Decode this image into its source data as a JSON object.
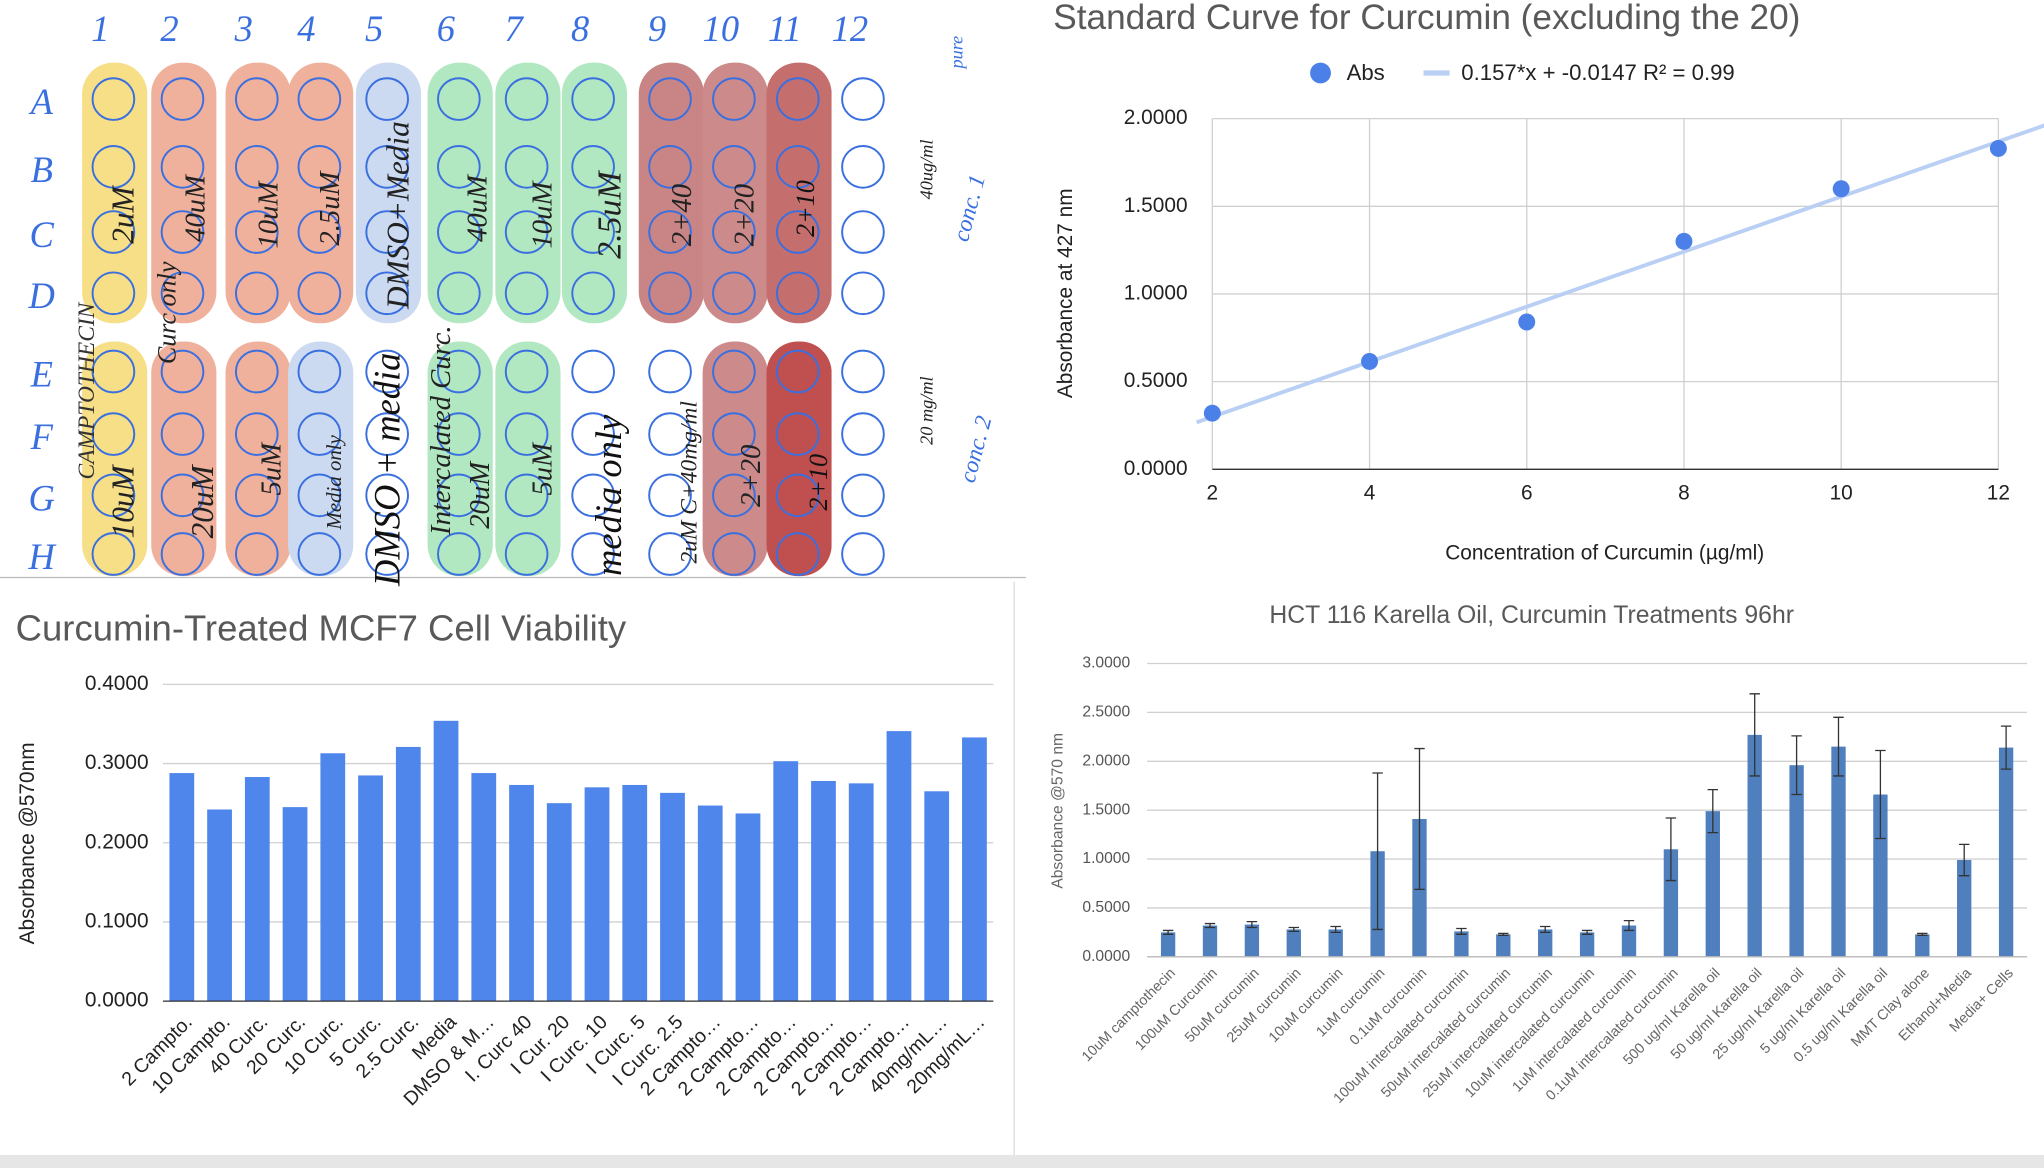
{
  "plate": {
    "columns": [
      "1",
      "2",
      "3",
      "4",
      "5",
      "6",
      "7",
      "8",
      "9",
      "10",
      "11",
      "12"
    ],
    "rows": [
      "A",
      "B",
      "C",
      "D",
      "E",
      "F",
      "G",
      "H"
    ],
    "notes": [
      "pure",
      "40ug/ml",
      "conc. 1",
      "20 mg/ml",
      "conc. 2",
      "CAMPTOTHECIN",
      "2uM",
      "10uM",
      "Curc only",
      "40uM",
      "20uM",
      "10uM",
      "5uM",
      "2.5uM",
      "Media only",
      "DMSO+Media",
      "DMSO + media",
      "Intercalated Curc.",
      "40uM",
      "20uM",
      "10uM",
      "5uM",
      "2.5uM",
      "media only",
      "2+40",
      "2+20",
      "2+10",
      "2uM C+40mg/ml",
      "2+20",
      "2+10"
    ]
  },
  "chart_data": [
    {
      "type": "scatter",
      "title": "Standard Curve for Curcumin (excluding the 20)",
      "xlabel": "Concentration of Curcumin (µg/ml)",
      "ylabel": "Absorbance at 427 nm",
      "x": [
        2,
        4,
        6,
        8,
        10,
        12
      ],
      "series": [
        {
          "name": "Abs",
          "color": "#4a80e8",
          "values": [
            0.32,
            0.615,
            0.84,
            1.3,
            1.6,
            1.83
          ]
        }
      ],
      "trendline": {
        "name": "0.157*x + -0.0147 R² = 0.99",
        "color": "#b9cff4",
        "slope": 0.157,
        "intercept": -0.0147
      },
      "xlim": [
        2,
        12
      ],
      "xticks": [
        2,
        4,
        6,
        8,
        10,
        12
      ],
      "ylim": [
        0,
        2
      ],
      "yticks": [
        {
          "value": 0,
          "label": "0.0000"
        },
        {
          "value": 0.5,
          "label": "0.5000"
        },
        {
          "value": 1,
          "label": "1.0000"
        },
        {
          "value": 1.5,
          "label": "1.5000"
        },
        {
          "value": 2,
          "label": "2.0000"
        }
      ],
      "grid": true,
      "legend": "top"
    },
    {
      "type": "bar",
      "title": "Curcumin-Treated MCF7 Cell Viability",
      "ylabel": "Absorbance @570nm",
      "color": "#4f86ec",
      "categories": [
        "2 Campto.",
        "10 Campto.",
        "40 Curc.",
        "20 Curc.",
        "10 Curc.",
        "5 Curc.",
        "2.5 Curc.",
        "Media",
        "DMSO & M…",
        "I. Curc 40",
        "I Cur. 20",
        "I Curc. 10",
        "I Curc. 5",
        "I Curc. 2.5",
        "2 Campto…",
        "2 Campto…",
        "2 Campto…",
        "2 Campto…",
        "2 Campto…",
        "2 Campto…",
        "40mg/mL…",
        "20mg/mL…"
      ],
      "values": [
        0.288,
        0.242,
        0.283,
        0.245,
        0.313,
        0.285,
        0.321,
        0.354,
        0.288,
        0.273,
        0.25,
        0.27,
        0.273,
        0.263,
        0.247,
        0.237,
        0.303,
        0.278,
        0.275,
        0.341,
        0.265,
        0.333
      ],
      "ylim": [
        0,
        0.4
      ],
      "yticks": [
        {
          "value": 0,
          "label": "0.0000"
        },
        {
          "value": 0.1,
          "label": "0.1000"
        },
        {
          "value": 0.2,
          "label": "0.2000"
        },
        {
          "value": 0.3,
          "label": "0.3000"
        },
        {
          "value": 0.4,
          "label": "0.4000"
        }
      ],
      "grid": true
    },
    {
      "type": "errorbar",
      "title": "HCT 116 Karella Oil, Curcumin Treatments 96hr",
      "ylabel": "Absorbance @570 nm",
      "color": "#4f7fbd",
      "categories": [
        "10uM camptothecin",
        "100uM Curcumin",
        "50uM curcumin",
        "25uM curcumin",
        "10uM curcumin",
        "1uM curcumin",
        "0.1uM curcumin",
        "100uM intercalated curcumin",
        "50uM intercalated curcumin",
        "25uM intercalated curcumin",
        "10uM intercalated curcumin",
        "1uM intercalated curcumin",
        "0.1uM intercalated curcumin",
        "500 ug/ml Karella oil",
        "50 ug/ml Karella oil",
        "25 ug/ml Karella oil",
        "5 ug/ml Karella oil",
        "0.5 ug/ml Karella oil",
        "MMT Clay alone",
        "Ethanol+Media",
        "Media+ Cells"
      ],
      "values": [
        0.25,
        0.32,
        0.33,
        0.28,
        0.28,
        1.08,
        1.41,
        0.26,
        0.23,
        0.28,
        0.25,
        0.32,
        1.1,
        1.49,
        2.27,
        1.96,
        2.15,
        1.66,
        0.23,
        0.99,
        2.14
      ],
      "errors": [
        0.02,
        0.02,
        0.03,
        0.02,
        0.03,
        0.8,
        0.72,
        0.03,
        0.01,
        0.03,
        0.02,
        0.05,
        0.32,
        0.22,
        0.42,
        0.3,
        0.3,
        0.45,
        0.01,
        0.16,
        0.22
      ],
      "ylim": [
        0,
        3
      ],
      "yticks": [
        {
          "value": 0,
          "label": "0.0000"
        },
        {
          "value": 0.5,
          "label": "0.5000"
        },
        {
          "value": 1,
          "label": "1.0000"
        },
        {
          "value": 1.5,
          "label": "1.5000"
        },
        {
          "value": 2,
          "label": "2.0000"
        },
        {
          "value": 2.5,
          "label": "2.5000"
        },
        {
          "value": 3,
          "label": "3.0000"
        }
      ],
      "grid": true
    }
  ]
}
